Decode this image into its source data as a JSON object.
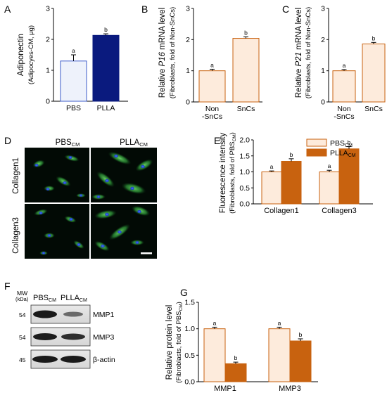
{
  "panel_letters": [
    "A",
    "B",
    "C",
    "D",
    "E",
    "F",
    "G"
  ],
  "colors": {
    "pbs_fill": "#eef2fb",
    "pbs_stroke": "#3b5bc9",
    "plla_fill": "#0a1a7e",
    "light_fill": "#fdebdc",
    "light_stroke": "#c8620f",
    "dark_fill": "#c8620f"
  },
  "chart_data": [
    {
      "panel": "A",
      "type": "bar",
      "categories": [
        "PBS",
        "PLLA"
      ],
      "values": [
        1.3,
        2.13
      ],
      "errors": [
        0.2,
        0.05
      ],
      "sig_letters": [
        "a",
        "b"
      ],
      "ylabel": "Adiponectin",
      "ylabel2": "(Adipocyes-CM, μg)",
      "ylim": [
        0,
        3
      ],
      "yticks": [
        "0",
        "1",
        "2",
        "3"
      ]
    },
    {
      "panel": "B",
      "type": "bar",
      "categories": [
        "Non\n-SnCs",
        "SnCs"
      ],
      "values": [
        1.0,
        2.04
      ],
      "errors": [
        0.05,
        0.05
      ],
      "sig_letters": [
        "a",
        "b"
      ],
      "ylabel_prefix": "Relative ",
      "ylabel_gene": "P16",
      "ylabel_suffix": " mRNA level",
      "ylabel2": "(Fibroblasts, fold of Non-SnCs)",
      "ylim": [
        0,
        3
      ],
      "yticks": [
        "0",
        "1",
        "2",
        "3"
      ]
    },
    {
      "panel": "C",
      "type": "bar",
      "categories": [
        "Non\n-SnCs",
        "SnCs"
      ],
      "values": [
        1.0,
        1.86
      ],
      "errors": [
        0.04,
        0.05
      ],
      "sig_letters": [
        "a",
        "b"
      ],
      "ylabel_prefix": "Relative ",
      "ylabel_gene": "P21",
      "ylabel_suffix": " mRNA level",
      "ylabel2": "(Fibroblasts, fold of Non-SnCs)",
      "ylim": [
        0,
        3
      ],
      "yticks": [
        "0",
        "1",
        "2",
        "3"
      ]
    },
    {
      "panel": "E",
      "type": "bar",
      "categories": [
        "Collagen1",
        "Collagen3"
      ],
      "series": [
        {
          "name": "PBS",
          "name_sub": "CM",
          "values": [
            1.0,
            1.0
          ],
          "errors": [
            0.03,
            0.05
          ],
          "sig_letters": [
            "a",
            "a"
          ]
        },
        {
          "name": "PLLA",
          "name_sub": "CM",
          "values": [
            1.33,
            1.72
          ],
          "errors": [
            0.08,
            0.07
          ],
          "sig_letters": [
            "b",
            "b"
          ]
        }
      ],
      "ylabel": "Fluorescence intensity",
      "ylabel2_main": "(Fibroblasts, fold of PBS",
      "ylabel2_sub": "CM",
      "ylabel2_close": ")",
      "ylim": [
        0,
        2.0
      ],
      "yticks": [
        "0.0",
        "0.5",
        "1.0",
        "1.5",
        "2.0"
      ],
      "legend_position": "top-right"
    },
    {
      "panel": "G",
      "type": "bar",
      "categories": [
        "MMP1",
        "MMP3"
      ],
      "series": [
        {
          "name": "PBS",
          "name_sub": "CM",
          "values": [
            1.0,
            1.0
          ],
          "errors": [
            0.03,
            0.03
          ],
          "sig_letters": [
            "a",
            "a"
          ]
        },
        {
          "name": "PLLA",
          "name_sub": "CM",
          "values": [
            0.34,
            0.77
          ],
          "errors": [
            0.03,
            0.04
          ],
          "sig_letters": [
            "b",
            "b"
          ]
        }
      ],
      "ylabel": "Relative protein level",
      "ylabel2_main": "(Fibroblasts, fold of PBS",
      "ylabel2_sub": "CM",
      "ylabel2_close": ")",
      "ylim": [
        0,
        1.5
      ],
      "yticks": [
        "0.0",
        "0.5",
        "1.0",
        "1.5"
      ]
    }
  ],
  "panel_d": {
    "col_titles": [
      {
        "main": "PBS",
        "sub": "CM"
      },
      {
        "main": "PLLA",
        "sub": "CM"
      }
    ],
    "row_labels": [
      "Collagen1",
      "Collagen3"
    ]
  },
  "panel_f": {
    "mw_label": "MW",
    "mw_unit": "(kDa)",
    "lane_labels": [
      {
        "main": "PBS",
        "sub": "CM"
      },
      {
        "main": "PLLA",
        "sub": "CM"
      }
    ],
    "rows": [
      {
        "mw": "54",
        "protein": "MMP1"
      },
      {
        "mw": "54",
        "protein": "MMP3"
      },
      {
        "mw": "45",
        "protein": "β-actin"
      }
    ]
  }
}
